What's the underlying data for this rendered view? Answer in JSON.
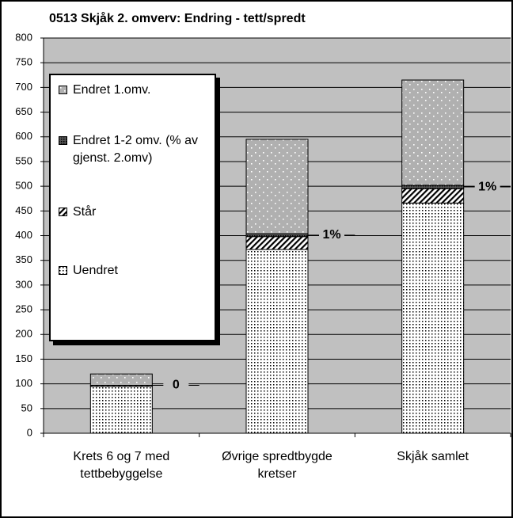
{
  "chart_data": {
    "type": "stacked_bar",
    "title": "0513 Skjåk 2. omverv: Endring - tett/spredt",
    "categories": [
      "Krets 6 og 7 med tettbebyggelse",
      "Øvrige spredtbygde kretser",
      "Skjåk samlet"
    ],
    "series": [
      {
        "name": "Uendret",
        "color": "#ffffff",
        "pattern": "dots",
        "values": [
          95,
          372,
          466
        ]
      },
      {
        "name": "Står",
        "color": "#ffffff",
        "pattern": "hatch",
        "values": [
          2,
          26,
          29
        ]
      },
      {
        "name": "Endret 1-2 omv. (% av gjenst. 2.omv)",
        "color": "#808080",
        "pattern": "check",
        "values": [
          0,
          6,
          7
        ],
        "value_labels": [
          "0",
          "1%",
          "1%"
        ]
      },
      {
        "name": "Endret 1.omv.",
        "color": "#b0b0b0",
        "pattern": "spots",
        "values": [
          23,
          191,
          213
        ]
      }
    ],
    "ylim": [
      0,
      800
    ],
    "yticks": [
      0,
      50,
      100,
      150,
      200,
      250,
      300,
      350,
      400,
      450,
      500,
      550,
      600,
      650,
      700,
      750,
      800
    ],
    "grid": true,
    "legend": "upper left"
  }
}
